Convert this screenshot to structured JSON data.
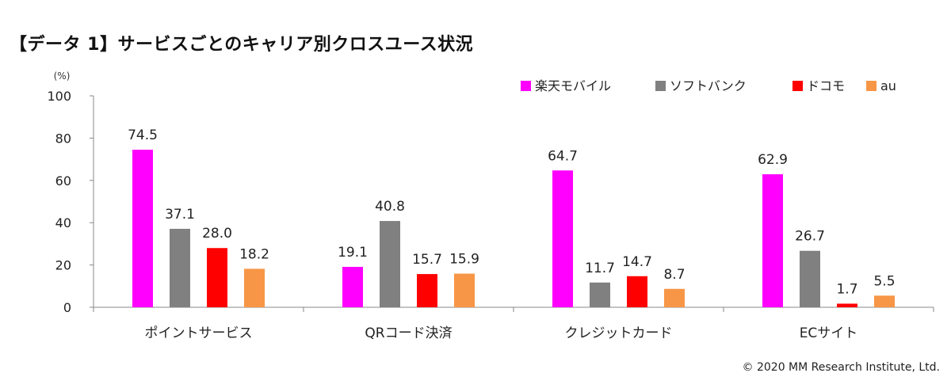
{
  "page": {
    "title": "【データ 1】サービスごとのキャリア別クロスユース状況",
    "copyright": "© 2020 MM Research Institute, Ltd."
  },
  "chart_data": {
    "type": "bar",
    "title": "",
    "unit": "(%)",
    "categories": [
      "ポイントサービス",
      "QRコード決済",
      "クレジットカード",
      "ECサイト"
    ],
    "series": [
      {
        "name": "楽天モバイル",
        "color": "#FF00FF",
        "values": [
          74.5,
          19.1,
          64.7,
          62.9
        ]
      },
      {
        "name": "ソフトバンク",
        "color": "#808080",
        "values": [
          37.1,
          40.8,
          11.7,
          26.7
        ]
      },
      {
        "name": "ドコモ",
        "color": "#FF0000",
        "values": [
          28.0,
          15.7,
          14.7,
          1.7
        ]
      },
      {
        "name": "au",
        "color": "#F79646",
        "values": [
          18.2,
          15.9,
          8.7,
          5.5
        ]
      }
    ],
    "ylim": [
      0,
      100
    ],
    "yticks": [
      0,
      20,
      40,
      60,
      80,
      100
    ],
    "grid": false,
    "legend_position": "top-right"
  }
}
